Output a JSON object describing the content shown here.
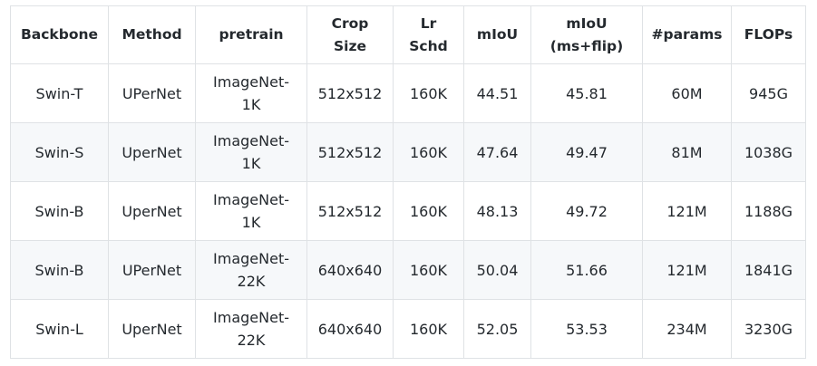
{
  "table": {
    "headers": [
      [
        "Backbone"
      ],
      [
        "Method"
      ],
      [
        "pretrain"
      ],
      [
        "Crop",
        "Size"
      ],
      [
        "Lr",
        "Schd"
      ],
      [
        "mIoU"
      ],
      [
        "mIoU",
        "(ms+flip)"
      ],
      [
        "#params"
      ],
      [
        "FLOPs"
      ]
    ],
    "rows": [
      {
        "backbone": "Swin-T",
        "method": "UPerNet",
        "pretrain": [
          "ImageNet-",
          "1K"
        ],
        "crop_size": "512x512",
        "lr_schd": "160K",
        "miou": "44.51",
        "miou_ms_flip": "45.81",
        "params": "60M",
        "flops": "945G"
      },
      {
        "backbone": "Swin-S",
        "method": "UperNet",
        "pretrain": [
          "ImageNet-",
          "1K"
        ],
        "crop_size": "512x512",
        "lr_schd": "160K",
        "miou": "47.64",
        "miou_ms_flip": "49.47",
        "params": "81M",
        "flops": "1038G"
      },
      {
        "backbone": "Swin-B",
        "method": "UperNet",
        "pretrain": [
          "ImageNet-",
          "1K"
        ],
        "crop_size": "512x512",
        "lr_schd": "160K",
        "miou": "48.13",
        "miou_ms_flip": "49.72",
        "params": "121M",
        "flops": "1188G"
      },
      {
        "backbone": "Swin-B",
        "method": "UPerNet",
        "pretrain": [
          "ImageNet-",
          "22K"
        ],
        "crop_size": "640x640",
        "lr_schd": "160K",
        "miou": "50.04",
        "miou_ms_flip": "51.66",
        "params": "121M",
        "flops": "1841G"
      },
      {
        "backbone": "Swin-L",
        "method": "UperNet",
        "pretrain": [
          "ImageNet-",
          "22K"
        ],
        "crop_size": "640x640",
        "lr_schd": "160K",
        "miou": "52.05",
        "miou_ms_flip": "53.53",
        "params": "234M",
        "flops": "3230G"
      }
    ]
  },
  "colors": {
    "border": "#dfe2e5",
    "stripe": "#f6f8fa",
    "text": "#24292e"
  }
}
